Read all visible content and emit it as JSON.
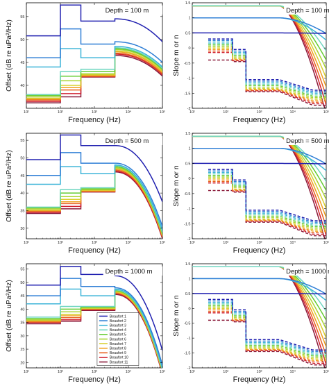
{
  "figure": {
    "offset_ylabel": "Offset (dB re uPa²/Hz)",
    "slope_ylabel": "Slope m or n",
    "xlabel": "Frequency (Hz)",
    "legend": [
      "Beaufort 1",
      "Beaufort 2",
      "Beaufort 3",
      "Beaufort 4",
      "Beaufort 5",
      "Beaufort 6",
      "Beaufort 7",
      "Beaufort 8",
      "Beaufort 9",
      "Beaufort 10",
      "Beaufort 11"
    ],
    "series_colors": [
      "#2020b0",
      "#2f7fd6",
      "#3cb4d8",
      "#6fd6c0",
      "#66cc33",
      "#a8d432",
      "#d8d030",
      "#f0a020",
      "#e86020",
      "#d02030",
      "#8a1a3a"
    ]
  },
  "chart_data": [
    {
      "type": "line",
      "panel": "offset",
      "annotation": "Depth = 100 m",
      "xscale": "log",
      "xlim": [
        10,
        100000
      ],
      "xticks": [
        10,
        100,
        1000,
        10000,
        100000
      ],
      "xticklabels": [
        "10¹",
        "10²",
        "10³",
        "10⁴",
        "10⁵"
      ],
      "ylim": [
        35,
        58
      ],
      "yticks": [
        40,
        45,
        50,
        55
      ],
      "low_values": [
        50.8,
        46.0,
        44.0,
        38.0,
        37.8,
        37.5,
        37.2,
        37.0,
        36.8,
        36.5,
        36.2
      ],
      "mid_values": [
        57.5,
        52.3,
        48.0,
        43.0,
        42.0,
        41.0,
        40.0,
        39.5,
        39.0,
        38.2,
        37.5
      ],
      "mid2_values": [
        54.0,
        49.0,
        46.0,
        43.5,
        43.0,
        42.5,
        42.3,
        42.1,
        42.0,
        41.9,
        41.8
      ],
      "high_values": [
        54.5,
        49.5,
        48.5,
        48.2,
        48.0,
        47.8,
        47.5,
        47.3,
        47.0,
        46.8,
        46.5
      ],
      "rolloff_db": [
        5.0,
        4.5,
        4.5,
        4.5,
        4.5,
        4.5,
        4.5,
        4.5,
        4.5,
        4.5,
        4.5
      ]
    },
    {
      "type": "line",
      "panel": "slope",
      "annotation": "Depth = 100 m",
      "xscale": "log",
      "xlim": [
        10,
        100000
      ],
      "xticks": [
        10,
        100,
        1000,
        10000,
        100000
      ],
      "xticklabels": [
        "10¹",
        "10²",
        "10³",
        "10⁴",
        "10⁵"
      ],
      "ylim": [
        -2,
        1.5
      ],
      "yticks": [
        1.5,
        1,
        0.5,
        0,
        -0.5,
        -1,
        -1.5,
        -2
      ],
      "solid_level_b1": 0.5,
      "solid_level_b3": 1.0,
      "solid_level_high": 1.4,
      "dash_low_values": [
        0.3,
        0.25,
        0.2,
        0.15,
        0.1,
        0.05,
        0.0,
        -0.05,
        -0.1,
        -0.15,
        -0.4
      ],
      "dash_mid_values": [
        -0.05,
        -0.1,
        -0.15,
        -0.2,
        -0.25,
        -0.3,
        -0.35,
        -0.38,
        -0.4,
        -0.42,
        -0.45
      ],
      "dash_high_values": [
        -1.05,
        -1.1,
        -1.15,
        -1.2,
        -1.25,
        -1.3,
        -1.35,
        -1.38,
        -1.4,
        -1.42,
        -1.45
      ],
      "dash_tail_values": [
        -1.4,
        -1.45,
        -1.5,
        -1.55,
        -1.6,
        -1.65,
        -1.7,
        -1.75,
        -1.8,
        -1.85,
        -1.9
      ]
    },
    {
      "type": "line",
      "panel": "offset",
      "annotation": "Depth = 500 m",
      "xscale": "log",
      "xlim": [
        10,
        100000
      ],
      "xticks": [
        10,
        100,
        1000,
        10000,
        100000
      ],
      "xticklabels": [
        "10¹",
        "10²",
        "10³",
        "10⁴",
        "10⁵"
      ],
      "ylim": [
        27,
        57
      ],
      "yticks": [
        30,
        35,
        40,
        45,
        50,
        55
      ],
      "low_values": [
        49.5,
        45.0,
        42.5,
        36.0,
        35.8,
        35.5,
        35.2,
        35.0,
        34.8,
        34.5,
        34.2
      ],
      "mid_values": [
        56.5,
        51.5,
        47.5,
        41.0,
        40.0,
        39.0,
        38.2,
        37.5,
        37.0,
        36.2,
        35.5
      ],
      "mid2_values": [
        53.5,
        48.5,
        45.5,
        41.5,
        41.2,
        41.0,
        40.8,
        40.6,
        40.5,
        40.4,
        40.3
      ],
      "high_values": [
        53.5,
        48.5,
        48.0,
        47.8,
        47.5,
        47.2,
        47.0,
        46.8,
        46.5,
        46.2,
        46.0
      ],
      "rolloff_db": [
        16.0,
        18.0,
        18.5,
        19.0,
        19.0,
        19.0,
        19.0,
        19.0,
        19.0,
        19.0,
        19.0
      ]
    },
    {
      "type": "line",
      "panel": "slope",
      "annotation": "Depth = 500 m",
      "xscale": "log",
      "xlim": [
        10,
        100000
      ],
      "xticks": [
        10,
        100,
        1000,
        10000,
        100000
      ],
      "xticklabels": [
        "10¹",
        "10²",
        "10³",
        "10⁴",
        "10⁵"
      ],
      "ylim": [
        -2,
        1.5
      ],
      "yticks": [
        1.5,
        1,
        0.5,
        0,
        -0.5,
        -1,
        -1.5,
        -2
      ],
      "solid_level_b1": 0.5,
      "solid_level_b3": 1.0,
      "solid_level_high": 1.4,
      "dash_low_values": [
        0.3,
        0.25,
        0.2,
        0.15,
        0.1,
        0.05,
        0.0,
        -0.05,
        -0.1,
        -0.15,
        -0.4
      ],
      "dash_mid_values": [
        -0.05,
        -0.1,
        -0.15,
        -0.2,
        -0.25,
        -0.3,
        -0.35,
        -0.38,
        -0.4,
        -0.42,
        -0.45
      ],
      "dash_high_values": [
        -1.05,
        -1.1,
        -1.15,
        -1.2,
        -1.25,
        -1.3,
        -1.35,
        -1.38,
        -1.4,
        -1.42,
        -1.45
      ],
      "dash_tail_values": [
        -1.4,
        -1.45,
        -1.5,
        -1.55,
        -1.6,
        -1.65,
        -1.7,
        -1.75,
        -1.8,
        -1.85,
        -1.9
      ]
    },
    {
      "type": "line",
      "panel": "offset",
      "annotation": "Depth = 1000 m",
      "xscale": "log",
      "xlim": [
        10,
        100000
      ],
      "xticks": [
        10,
        100,
        1000,
        10000,
        100000
      ],
      "xticklabels": [
        "10¹",
        "10²",
        "10³",
        "10⁴",
        "10⁵"
      ],
      "ylim": [
        18,
        57
      ],
      "yticks": [
        20,
        25,
        30,
        35,
        40,
        45,
        50,
        55
      ],
      "low_values": [
        49.0,
        45.0,
        42.0,
        37.0,
        36.5,
        36.0,
        35.8,
        35.5,
        35.2,
        35.0,
        34.5
      ],
      "mid_values": [
        56.0,
        51.5,
        47.5,
        41.0,
        40.0,
        39.0,
        38.0,
        37.5,
        36.8,
        36.0,
        35.5
      ],
      "mid2_values": [
        53.0,
        48.5,
        45.0,
        41.0,
        40.8,
        40.5,
        40.3,
        40.1,
        40.0,
        39.8,
        39.5
      ],
      "high_values": [
        52.5,
        48.0,
        47.5,
        47.2,
        47.0,
        46.7,
        46.5,
        46.2,
        46.0,
        45.8,
        45.5
      ],
      "rolloff_db": [
        28.0,
        29.0,
        29.5,
        30.0,
        30.0,
        30.0,
        30.0,
        30.0,
        30.0,
        30.0,
        30.0
      ]
    },
    {
      "type": "line",
      "panel": "slope",
      "annotation": "Depth = 1000 m",
      "xscale": "log",
      "xlim": [
        10,
        100000
      ],
      "xticks": [
        10,
        100,
        1000,
        10000,
        100000
      ],
      "xticklabels": [
        "10¹",
        "10²",
        "10³",
        "10⁴",
        "10⁵"
      ],
      "ylim": [
        -2,
        1.5
      ],
      "yticks": [
        1.5,
        1,
        0.5,
        0,
        -0.5,
        -1,
        -1.5,
        -2
      ],
      "solid_level_b1": 0.5,
      "solid_level_b3": 1.0,
      "solid_level_high": 1.4,
      "dash_low_values": [
        0.3,
        0.25,
        0.2,
        0.15,
        0.1,
        0.05,
        0.0,
        -0.05,
        -0.1,
        -0.15,
        -0.4
      ],
      "dash_mid_values": [
        -0.05,
        -0.1,
        -0.15,
        -0.2,
        -0.25,
        -0.3,
        -0.35,
        -0.38,
        -0.4,
        -0.42,
        -0.45
      ],
      "dash_high_values": [
        -1.05,
        -1.1,
        -1.15,
        -1.2,
        -1.25,
        -1.3,
        -1.35,
        -1.38,
        -1.4,
        -1.42,
        -1.45
      ],
      "dash_tail_values": [
        -1.4,
        -1.45,
        -1.5,
        -1.55,
        -1.6,
        -1.65,
        -1.7,
        -1.75,
        -1.8,
        -1.85,
        -1.9
      ]
    }
  ]
}
